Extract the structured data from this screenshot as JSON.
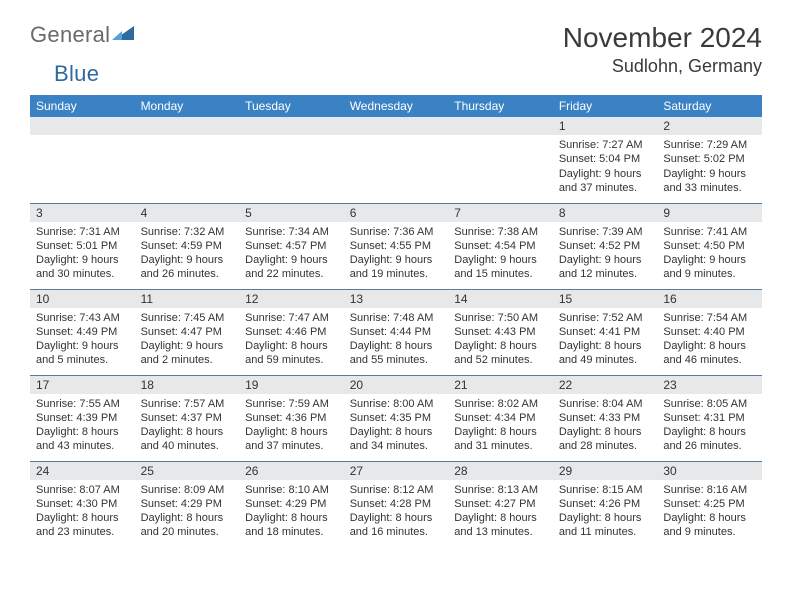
{
  "logo": {
    "text1": "General",
    "text2": "Blue"
  },
  "title": "November 2024",
  "location": "Sudlohn, Germany",
  "header_color": "#3b82c4",
  "dayhead_color": "#e6e8ea",
  "rule_color": "#5a7a9a",
  "font_size_title": 28,
  "font_size_location": 18,
  "font_size_dayhead": 12,
  "font_size_cell": 11,
  "weekdays": [
    "Sunday",
    "Monday",
    "Tuesday",
    "Wednesday",
    "Thursday",
    "Friday",
    "Saturday"
  ],
  "weeks": [
    [
      null,
      null,
      null,
      null,
      null,
      {
        "n": "1",
        "sr": "Sunrise: 7:27 AM",
        "ss": "Sunset: 5:04 PM",
        "d1": "Daylight: 9 hours",
        "d2": "and 37 minutes."
      },
      {
        "n": "2",
        "sr": "Sunrise: 7:29 AM",
        "ss": "Sunset: 5:02 PM",
        "d1": "Daylight: 9 hours",
        "d2": "and 33 minutes."
      }
    ],
    [
      {
        "n": "3",
        "sr": "Sunrise: 7:31 AM",
        "ss": "Sunset: 5:01 PM",
        "d1": "Daylight: 9 hours",
        "d2": "and 30 minutes."
      },
      {
        "n": "4",
        "sr": "Sunrise: 7:32 AM",
        "ss": "Sunset: 4:59 PM",
        "d1": "Daylight: 9 hours",
        "d2": "and 26 minutes."
      },
      {
        "n": "5",
        "sr": "Sunrise: 7:34 AM",
        "ss": "Sunset: 4:57 PM",
        "d1": "Daylight: 9 hours",
        "d2": "and 22 minutes."
      },
      {
        "n": "6",
        "sr": "Sunrise: 7:36 AM",
        "ss": "Sunset: 4:55 PM",
        "d1": "Daylight: 9 hours",
        "d2": "and 19 minutes."
      },
      {
        "n": "7",
        "sr": "Sunrise: 7:38 AM",
        "ss": "Sunset: 4:54 PM",
        "d1": "Daylight: 9 hours",
        "d2": "and 15 minutes."
      },
      {
        "n": "8",
        "sr": "Sunrise: 7:39 AM",
        "ss": "Sunset: 4:52 PM",
        "d1": "Daylight: 9 hours",
        "d2": "and 12 minutes."
      },
      {
        "n": "9",
        "sr": "Sunrise: 7:41 AM",
        "ss": "Sunset: 4:50 PM",
        "d1": "Daylight: 9 hours",
        "d2": "and 9 minutes."
      }
    ],
    [
      {
        "n": "10",
        "sr": "Sunrise: 7:43 AM",
        "ss": "Sunset: 4:49 PM",
        "d1": "Daylight: 9 hours",
        "d2": "and 5 minutes."
      },
      {
        "n": "11",
        "sr": "Sunrise: 7:45 AM",
        "ss": "Sunset: 4:47 PM",
        "d1": "Daylight: 9 hours",
        "d2": "and 2 minutes."
      },
      {
        "n": "12",
        "sr": "Sunrise: 7:47 AM",
        "ss": "Sunset: 4:46 PM",
        "d1": "Daylight: 8 hours",
        "d2": "and 59 minutes."
      },
      {
        "n": "13",
        "sr": "Sunrise: 7:48 AM",
        "ss": "Sunset: 4:44 PM",
        "d1": "Daylight: 8 hours",
        "d2": "and 55 minutes."
      },
      {
        "n": "14",
        "sr": "Sunrise: 7:50 AM",
        "ss": "Sunset: 4:43 PM",
        "d1": "Daylight: 8 hours",
        "d2": "and 52 minutes."
      },
      {
        "n": "15",
        "sr": "Sunrise: 7:52 AM",
        "ss": "Sunset: 4:41 PM",
        "d1": "Daylight: 8 hours",
        "d2": "and 49 minutes."
      },
      {
        "n": "16",
        "sr": "Sunrise: 7:54 AM",
        "ss": "Sunset: 4:40 PM",
        "d1": "Daylight: 8 hours",
        "d2": "and 46 minutes."
      }
    ],
    [
      {
        "n": "17",
        "sr": "Sunrise: 7:55 AM",
        "ss": "Sunset: 4:39 PM",
        "d1": "Daylight: 8 hours",
        "d2": "and 43 minutes."
      },
      {
        "n": "18",
        "sr": "Sunrise: 7:57 AM",
        "ss": "Sunset: 4:37 PM",
        "d1": "Daylight: 8 hours",
        "d2": "and 40 minutes."
      },
      {
        "n": "19",
        "sr": "Sunrise: 7:59 AM",
        "ss": "Sunset: 4:36 PM",
        "d1": "Daylight: 8 hours",
        "d2": "and 37 minutes."
      },
      {
        "n": "20",
        "sr": "Sunrise: 8:00 AM",
        "ss": "Sunset: 4:35 PM",
        "d1": "Daylight: 8 hours",
        "d2": "and 34 minutes."
      },
      {
        "n": "21",
        "sr": "Sunrise: 8:02 AM",
        "ss": "Sunset: 4:34 PM",
        "d1": "Daylight: 8 hours",
        "d2": "and 31 minutes."
      },
      {
        "n": "22",
        "sr": "Sunrise: 8:04 AM",
        "ss": "Sunset: 4:33 PM",
        "d1": "Daylight: 8 hours",
        "d2": "and 28 minutes."
      },
      {
        "n": "23",
        "sr": "Sunrise: 8:05 AM",
        "ss": "Sunset: 4:31 PM",
        "d1": "Daylight: 8 hours",
        "d2": "and 26 minutes."
      }
    ],
    [
      {
        "n": "24",
        "sr": "Sunrise: 8:07 AM",
        "ss": "Sunset: 4:30 PM",
        "d1": "Daylight: 8 hours",
        "d2": "and 23 minutes."
      },
      {
        "n": "25",
        "sr": "Sunrise: 8:09 AM",
        "ss": "Sunset: 4:29 PM",
        "d1": "Daylight: 8 hours",
        "d2": "and 20 minutes."
      },
      {
        "n": "26",
        "sr": "Sunrise: 8:10 AM",
        "ss": "Sunset: 4:29 PM",
        "d1": "Daylight: 8 hours",
        "d2": "and 18 minutes."
      },
      {
        "n": "27",
        "sr": "Sunrise: 8:12 AM",
        "ss": "Sunset: 4:28 PM",
        "d1": "Daylight: 8 hours",
        "d2": "and 16 minutes."
      },
      {
        "n": "28",
        "sr": "Sunrise: 8:13 AM",
        "ss": "Sunset: 4:27 PM",
        "d1": "Daylight: 8 hours",
        "d2": "and 13 minutes."
      },
      {
        "n": "29",
        "sr": "Sunrise: 8:15 AM",
        "ss": "Sunset: 4:26 PM",
        "d1": "Daylight: 8 hours",
        "d2": "and 11 minutes."
      },
      {
        "n": "30",
        "sr": "Sunrise: 8:16 AM",
        "ss": "Sunset: 4:25 PM",
        "d1": "Daylight: 8 hours",
        "d2": "and 9 minutes."
      }
    ]
  ]
}
